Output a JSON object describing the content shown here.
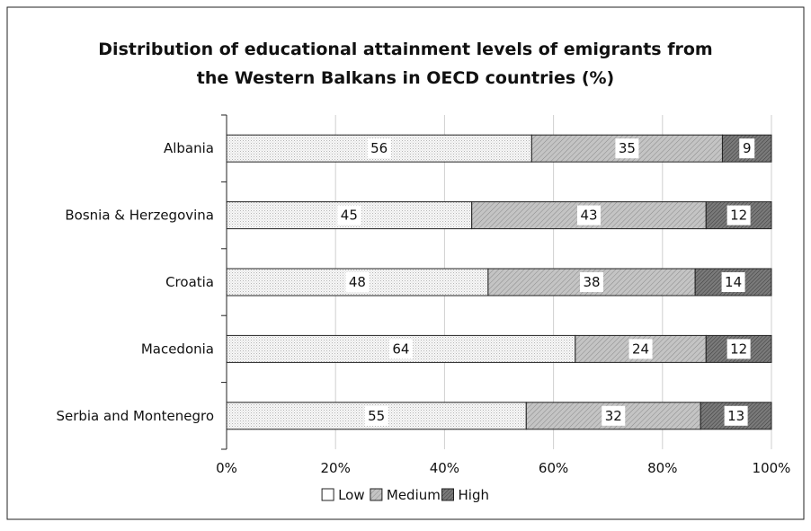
{
  "chart_data": {
    "type": "bar",
    "orientation": "horizontal",
    "stacked": true,
    "title": "Distribution of educational attainment levels of emigrants from the Western Balkans in OECD countries (%)",
    "title_lines": [
      "Distribution of educational attainment levels of emigrants from",
      "the Western Balkans in OECD countries (%)"
    ],
    "categories": [
      "Albania",
      "Bosnia & Herzegovina",
      "Croatia",
      "Macedonia",
      "Serbia and Montenegro"
    ],
    "series": [
      {
        "name": "Low",
        "values": [
          56,
          45,
          48,
          64,
          55
        ],
        "color": "#f2f2f2",
        "pattern": "dots"
      },
      {
        "name": "Medium",
        "values": [
          35,
          43,
          38,
          24,
          32
        ],
        "color": "#bdbdbd",
        "pattern": "diagonal"
      },
      {
        "name": "High",
        "values": [
          9,
          12,
          14,
          12,
          13
        ],
        "color": "#707070",
        "pattern": "dense-diagonal"
      }
    ],
    "xlim": [
      0,
      100
    ],
    "xticks": [
      0,
      20,
      40,
      60,
      80,
      100
    ],
    "xtick_labels": [
      "0%",
      "20%",
      "40%",
      "60%",
      "80%",
      "100%"
    ],
    "grid": true,
    "legend_position": "bottom",
    "xlabel": "",
    "ylabel": ""
  }
}
